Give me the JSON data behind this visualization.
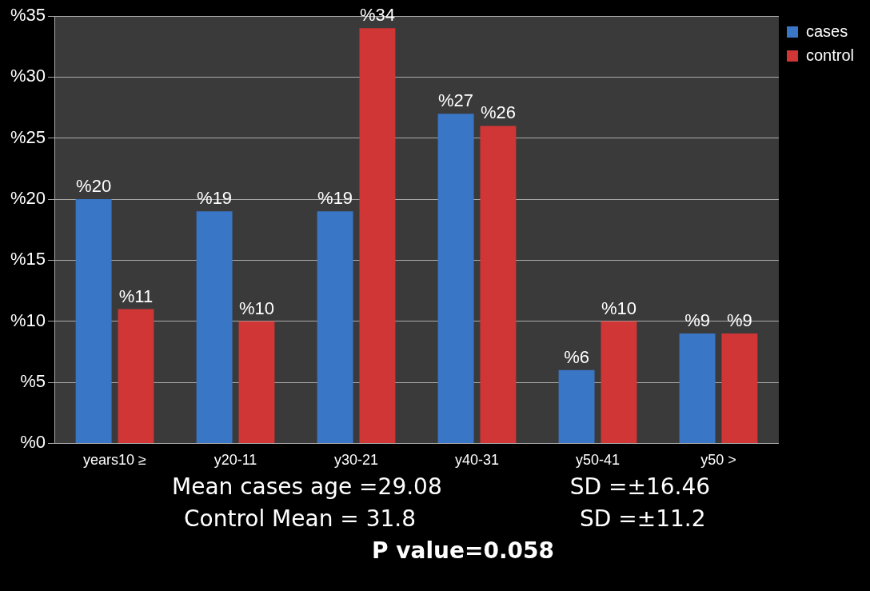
{
  "chart_data": {
    "type": "bar",
    "categories": [
      "years10 ≥",
      "y20-11",
      "y30-21",
      "y40-31",
      "y50-41",
      "y50 >"
    ],
    "series": [
      {
        "name": "cases",
        "color": "#3a76c6",
        "values": [
          20,
          19,
          19,
          27,
          6,
          9
        ],
        "value_labels": [
          "%20",
          "%19",
          "%19",
          "%27",
          "%6",
          "%9"
        ]
      },
      {
        "name": "control",
        "color": "#d03636",
        "values": [
          11,
          10,
          34,
          26,
          10,
          9
        ],
        "value_labels": [
          "%11",
          "%10",
          "%34",
          "%26",
          "%10",
          "%9"
        ]
      }
    ],
    "ylim": [
      0,
      35
    ],
    "yticks": [
      {
        "value": 0,
        "label": "%0"
      },
      {
        "value": 5,
        "label": "%5"
      },
      {
        "value": 10,
        "label": "%10"
      },
      {
        "value": 15,
        "label": "%15"
      },
      {
        "value": 20,
        "label": "%20"
      },
      {
        "value": 25,
        "label": "%25"
      },
      {
        "value": 30,
        "label": "%30"
      },
      {
        "value": 35,
        "label": "%35"
      }
    ],
    "grid": "y",
    "legend": "top right",
    "annotations": [
      "Mean cases age =29.08",
      "SD =±16.46",
      "Control  Mean = 31.8",
      "SD =±11.2",
      "P value=0.058"
    ]
  }
}
